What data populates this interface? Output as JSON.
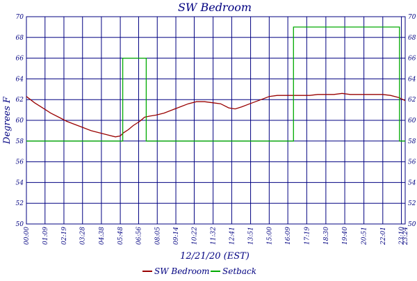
{
  "chart_data": {
    "type": "line",
    "title": "SW Bedroom",
    "xlabel": "12/21/20 (EST)",
    "ylabel": "Degrees F",
    "x_unit": "hours",
    "xlim": [
      0,
      23.4
    ],
    "ylim": [
      50,
      70
    ],
    "y_ticks": [
      50,
      52,
      54,
      56,
      58,
      60,
      62,
      64,
      66,
      68,
      70
    ],
    "x_ticks": [
      {
        "value": 0.0,
        "label": "00:00"
      },
      {
        "value": 1.15,
        "label": "01:09"
      },
      {
        "value": 2.317,
        "label": "02:19"
      },
      {
        "value": 3.467,
        "label": "03:28"
      },
      {
        "value": 4.633,
        "label": "04:38"
      },
      {
        "value": 5.8,
        "label": "05:48"
      },
      {
        "value": 6.933,
        "label": "06:56"
      },
      {
        "value": 8.083,
        "label": "08:05"
      },
      {
        "value": 9.233,
        "label": "09:14"
      },
      {
        "value": 10.367,
        "label": "10:22"
      },
      {
        "value": 11.533,
        "label": "11:32"
      },
      {
        "value": 12.683,
        "label": "12:41"
      },
      {
        "value": 13.85,
        "label": "13:51"
      },
      {
        "value": 15.0,
        "label": "15:00"
      },
      {
        "value": 16.15,
        "label": "16:09"
      },
      {
        "value": 17.317,
        "label": "17:19"
      },
      {
        "value": 18.5,
        "label": "18:30"
      },
      {
        "value": 19.667,
        "label": "19:40"
      },
      {
        "value": 20.85,
        "label": "20:51"
      },
      {
        "value": 22.017,
        "label": "22:01"
      },
      {
        "value": 23.167,
        "label": "23:10"
      },
      {
        "value": 23.4,
        "label": "23:24"
      }
    ],
    "grid": true,
    "legend_position": "bottom",
    "series": [
      {
        "name": "SW Bedroom",
        "color": "#990000",
        "x": [
          0,
          0.5,
          1.0,
          1.5,
          2.0,
          2.5,
          3.0,
          3.5,
          4.0,
          4.5,
          5.0,
          5.5,
          5.8,
          6.0,
          6.3,
          6.6,
          7.0,
          7.3,
          7.6,
          8.0,
          8.5,
          9.0,
          9.5,
          10.0,
          10.5,
          11.0,
          11.5,
          12.0,
          12.5,
          12.9,
          13.3,
          13.8,
          14.5,
          15.0,
          15.5,
          16.0,
          16.5,
          17.0,
          17.5,
          18.0,
          18.5,
          19.0,
          19.5,
          20.0,
          20.5,
          21.0,
          21.5,
          22.0,
          22.5,
          23.0,
          23.4
        ],
        "values": [
          62.3,
          61.7,
          61.2,
          60.7,
          60.3,
          59.9,
          59.6,
          59.3,
          59.0,
          58.8,
          58.6,
          58.4,
          58.5,
          58.8,
          59.1,
          59.5,
          59.9,
          60.3,
          60.4,
          60.5,
          60.7,
          61.0,
          61.3,
          61.6,
          61.8,
          61.8,
          61.7,
          61.6,
          61.2,
          61.1,
          61.3,
          61.6,
          62.0,
          62.3,
          62.4,
          62.4,
          62.4,
          62.4,
          62.4,
          62.5,
          62.5,
          62.5,
          62.6,
          62.5,
          62.5,
          62.5,
          62.5,
          62.5,
          62.4,
          62.2,
          61.9
        ]
      },
      {
        "name": "Setback",
        "color": "#00aa00",
        "x": [
          0,
          5.95,
          5.95,
          7.4,
          7.4,
          16.5,
          16.5,
          23.05,
          23.05,
          23.4
        ],
        "values": [
          58,
          58,
          66,
          66,
          58,
          58,
          69,
          69,
          58,
          58
        ]
      }
    ]
  }
}
